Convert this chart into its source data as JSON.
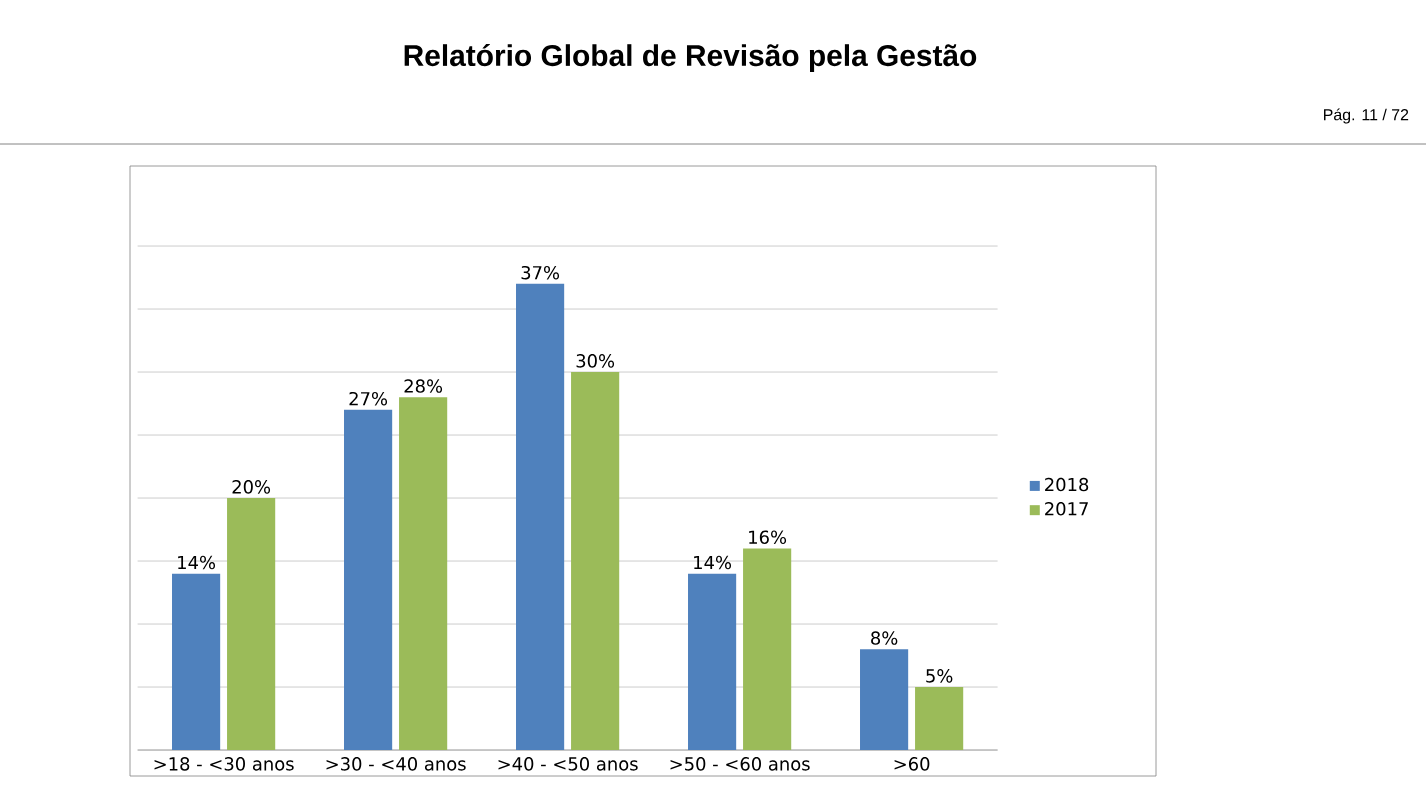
{
  "chart_data": {
    "type": "bar",
    "title": "Relatório Global de Revisão pela Gestão",
    "annotations": [
      "Pág. 11 / 72"
    ],
    "categories": [
      ">18 - <30 anos",
      ">30 - <40 anos",
      ">40 - <50 anos",
      ">50 - <60 anos",
      ">60"
    ],
    "series": [
      {
        "name": "2018",
        "color": "#4f81bd",
        "values": [
          14,
          27,
          37,
          14,
          8
        ],
        "value_labels": [
          "14%",
          "27%",
          "37%",
          "14%",
          "8%"
        ]
      },
      {
        "name": "2017",
        "color": "#9bbb59",
        "values": [
          20,
          28,
          30,
          16,
          5
        ],
        "value_labels": [
          "20%",
          "28%",
          "30%",
          "16%",
          "5%"
        ]
      }
    ],
    "ylim": [
      0,
      40
    ],
    "yticks": [
      {
        "value": 0,
        "label": null
      },
      {
        "value": 5,
        "label": null
      },
      {
        "value": 10,
        "label": null
      },
      {
        "value": 15,
        "label": null
      },
      {
        "value": 20,
        "label": null
      },
      {
        "value": 25,
        "label": null
      },
      {
        "value": 30,
        "label": null
      },
      {
        "value": 35,
        "label": null
      },
      {
        "value": 40,
        "label": null
      }
    ],
    "grid": "y",
    "legend": "right",
    "tick_labels": "x"
  }
}
